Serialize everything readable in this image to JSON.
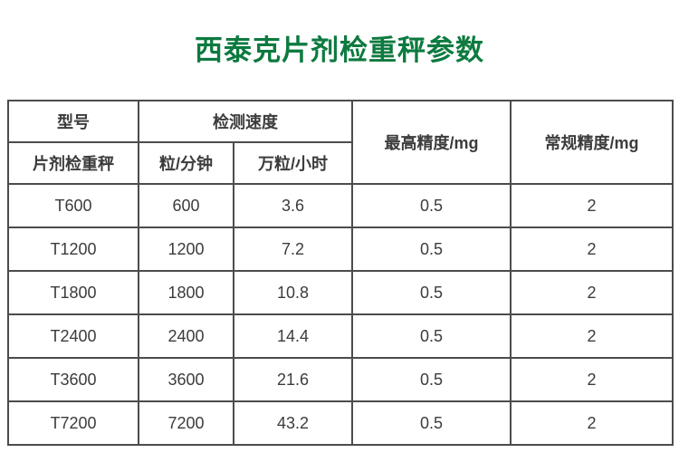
{
  "page": {
    "title": "西泰克片剂检重秤参数"
  },
  "colors": {
    "title_green": "#0d7a3f",
    "border_gray": "#4c4c4c",
    "text_dark": "#3c3c3c",
    "background": "#ffffff"
  },
  "table": {
    "header": {
      "model": "型号",
      "model_sub": "片剂检重秤",
      "speed_group": "检测速度",
      "speed_per_min": "粒/分钟",
      "speed_wan_per_hour": "万粒/小时",
      "max_precision": "最高精度/mg",
      "normal_precision": "常规精度/mg"
    },
    "rows": [
      {
        "model": "T600",
        "per_min": "600",
        "wan_per_hour": "3.6",
        "max_precision": "0.5",
        "normal_precision": "2"
      },
      {
        "model": "T1200",
        "per_min": "1200",
        "wan_per_hour": "7.2",
        "max_precision": "0.5",
        "normal_precision": "2"
      },
      {
        "model": "T1800",
        "per_min": "1800",
        "wan_per_hour": "10.8",
        "max_precision": "0.5",
        "normal_precision": "2"
      },
      {
        "model": "T2400",
        "per_min": "2400",
        "wan_per_hour": "14.4",
        "max_precision": "0.5",
        "normal_precision": "2"
      },
      {
        "model": "T3600",
        "per_min": "3600",
        "wan_per_hour": "21.6",
        "max_precision": "0.5",
        "normal_precision": "2"
      },
      {
        "model": "T7200",
        "per_min": "7200",
        "wan_per_hour": "43.2",
        "max_precision": "0.5",
        "normal_precision": "2"
      }
    ]
  },
  "chart_data": {
    "type": "table",
    "title": "西泰克片剂检重秤参数",
    "columns": [
      "型号(片剂检重秤)",
      "检测速度 粒/分钟",
      "检测速度 万粒/小时",
      "最高精度/mg",
      "常规精度/mg"
    ],
    "rows": [
      [
        "T600",
        600,
        3.6,
        0.5,
        2
      ],
      [
        "T1200",
        1200,
        7.2,
        0.5,
        2
      ],
      [
        "T1800",
        1800,
        10.8,
        0.5,
        2
      ],
      [
        "T2400",
        2400,
        14.4,
        0.5,
        2
      ],
      [
        "T3600",
        3600,
        21.6,
        0.5,
        2
      ],
      [
        "T7200",
        7200,
        43.2,
        0.5,
        2
      ]
    ]
  }
}
